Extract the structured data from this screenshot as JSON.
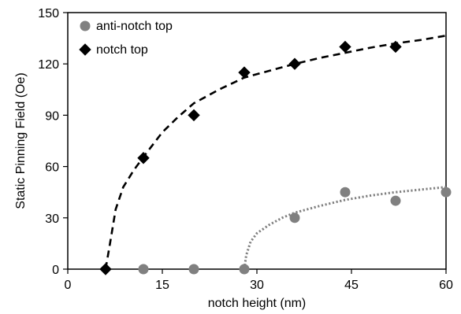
{
  "chart_data": {
    "type": "scatter",
    "title": "",
    "xlabel": "notch height (nm)",
    "ylabel": "Static Pinning Field (Oe)",
    "xlim": [
      0,
      60
    ],
    "ylim": [
      0,
      150
    ],
    "x_ticks": [
      0,
      15,
      30,
      45,
      60
    ],
    "y_ticks": [
      0,
      30,
      60,
      90,
      120,
      150
    ],
    "grid": false,
    "legend_position": "top-left",
    "series": [
      {
        "name": "anti-notch top",
        "marker": "circle",
        "color": "#808080",
        "points": [
          [
            12,
            0
          ],
          [
            20,
            0
          ],
          [
            28,
            0
          ],
          [
            36,
            30
          ],
          [
            44,
            45
          ],
          [
            52,
            40
          ],
          [
            60,
            45
          ]
        ],
        "fit": {
          "style": "dotted",
          "color": "#808080",
          "points": [
            [
              28,
              0
            ],
            [
              28.3,
              8
            ],
            [
              29,
              16
            ],
            [
              30,
              21
            ],
            [
              32,
              26
            ],
            [
              34,
              30
            ],
            [
              36,
              33
            ],
            [
              40,
              37
            ],
            [
              44,
              40.5
            ],
            [
              48,
              43
            ],
            [
              52,
              45
            ],
            [
              56,
              46.5
            ],
            [
              60,
              48
            ]
          ]
        }
      },
      {
        "name": "notch top",
        "marker": "diamond",
        "color": "#000000",
        "points": [
          [
            6,
            0
          ],
          [
            12,
            65
          ],
          [
            20,
            90
          ],
          [
            28,
            115
          ],
          [
            36,
            120
          ],
          [
            44,
            130
          ],
          [
            52,
            130
          ]
        ],
        "fit": {
          "style": "dashed",
          "color": "#000000",
          "points": [
            [
              6,
              0
            ],
            [
              6.7,
              15
            ],
            [
              7.6,
              35
            ],
            [
              8.8,
              48
            ],
            [
              10.5,
              58
            ],
            [
              12.5,
              68
            ],
            [
              15,
              80
            ],
            [
              17.5,
              89
            ],
            [
              20,
              97
            ],
            [
              24,
              105
            ],
            [
              28,
              112
            ],
            [
              32,
              116
            ],
            [
              36,
              120
            ],
            [
              40,
              123.5
            ],
            [
              44,
              126.5
            ],
            [
              48,
              129.5
            ],
            [
              52,
              132
            ],
            [
              56,
              134
            ],
            [
              60,
              136.5
            ]
          ]
        }
      }
    ]
  }
}
